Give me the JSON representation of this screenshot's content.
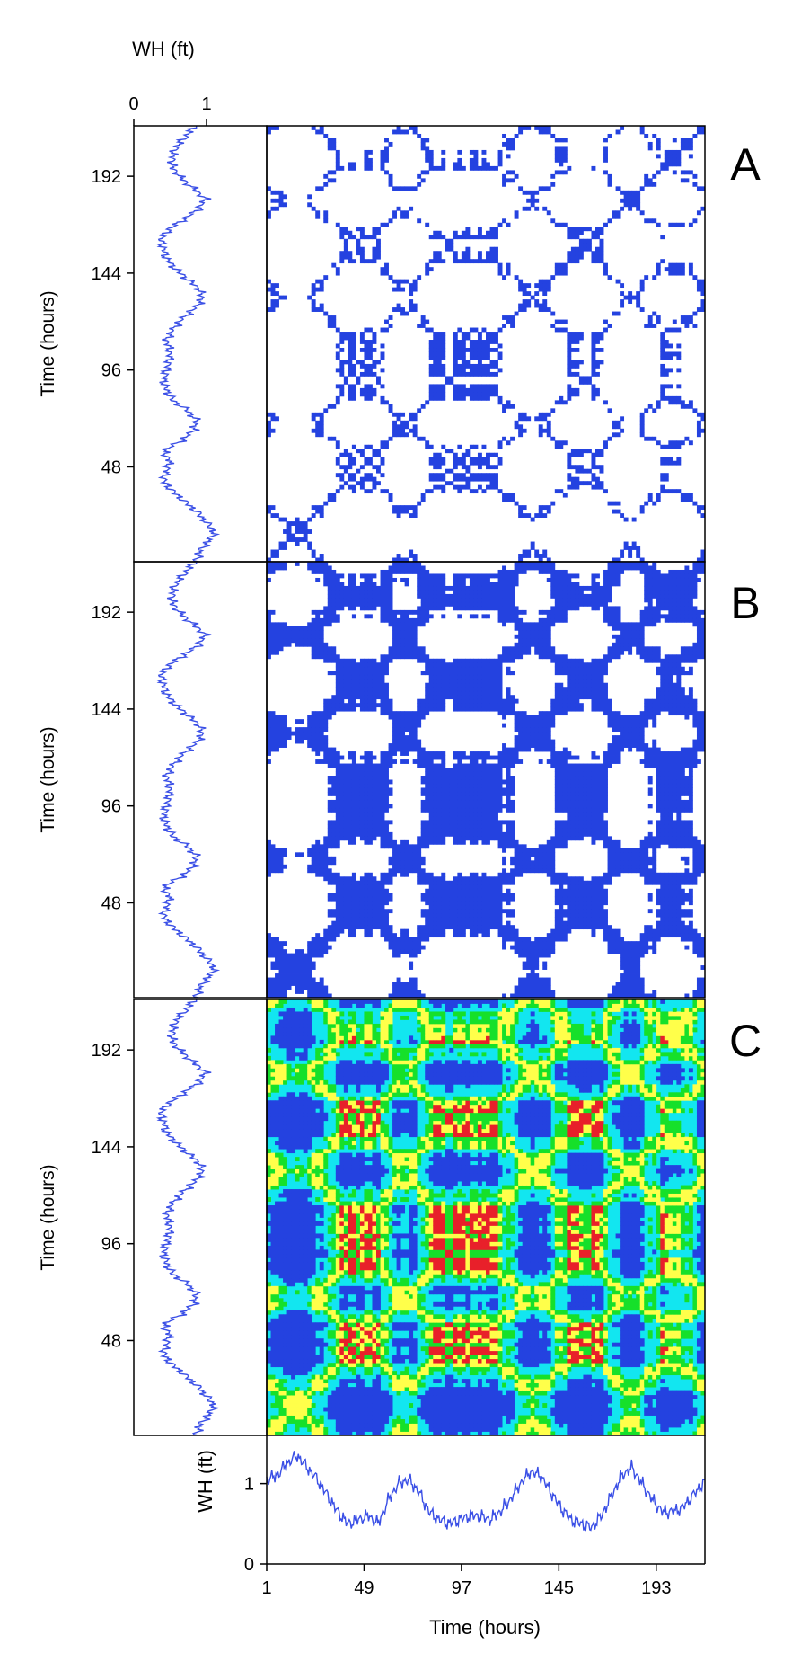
{
  "colors": {
    "wave_line": "#3a4fe6",
    "recurrence": "#2442e0",
    "level_cyan": "#12e6f0",
    "level_green": "#16e02a",
    "level_yellow": "#ffff4a",
    "level_red": "#e8202a",
    "frame": "#000000"
  },
  "chart_data": [
    {
      "type": "line",
      "panel_role": "top-axis wave height profile (vertical)",
      "xlabel": "WH (ft)",
      "xlim": [
        0,
        1
      ],
      "x_ticks": [
        "0",
        "1"
      ],
      "ylabel": "Time (hours)",
      "y_ticks": [
        "192",
        "144",
        "96",
        "48"
      ],
      "ylim": [
        1,
        217
      ],
      "note_values_from_bottom_trace": true
    },
    {
      "type": "heatmap",
      "panel_label": "A",
      "ylabel": "Time (hours)",
      "y_ticks": [
        "192",
        "144",
        "96",
        "48"
      ],
      "ylim": [
        1,
        217
      ],
      "threshold_fraction": 0.06,
      "colors": [
        "#2442e0"
      ]
    },
    {
      "type": "heatmap",
      "panel_label": "B",
      "ylabel": "Time (hours)",
      "y_ticks": [
        "192",
        "144",
        "96",
        "48"
      ],
      "ylim": [
        1,
        217
      ],
      "threshold_fraction": 0.22,
      "colors": [
        "#2442e0"
      ]
    },
    {
      "type": "heatmap",
      "panel_label": "C",
      "ylabel": "Time (hours)",
      "y_ticks": [
        "192",
        "144",
        "96",
        "48"
      ],
      "ylim": [
        1,
        217
      ],
      "levels": [
        "blue",
        "cyan",
        "green",
        "yellow",
        "red"
      ]
    },
    {
      "type": "line",
      "panel_role": "bottom wave height time series",
      "xlabel": "Time (hours)",
      "x_ticks": [
        "1",
        "49",
        "97",
        "145",
        "193"
      ],
      "xlim": [
        1,
        217
      ],
      "ylabel": "WH (ft)",
      "y_ticks": [
        "1",
        "0"
      ],
      "ylim": [
        0,
        1.6
      ],
      "x": [
        1,
        6,
        11,
        16,
        21,
        26,
        31,
        36,
        41,
        46,
        51,
        56,
        61,
        66,
        71,
        76,
        81,
        86,
        91,
        96,
        101,
        106,
        111,
        116,
        121,
        126,
        131,
        136,
        141,
        146,
        151,
        156,
        161,
        166,
        171,
        176,
        181,
        186,
        191,
        196,
        201,
        206,
        211,
        216
      ],
      "y": [
        1.05,
        1.1,
        1.25,
        1.35,
        1.2,
        1.05,
        0.85,
        0.65,
        0.5,
        0.55,
        0.6,
        0.5,
        0.8,
        1.0,
        1.05,
        0.9,
        0.65,
        0.55,
        0.5,
        0.55,
        0.6,
        0.6,
        0.55,
        0.65,
        0.8,
        1.0,
        1.15,
        1.1,
        0.9,
        0.7,
        0.55,
        0.5,
        0.45,
        0.6,
        0.85,
        1.1,
        1.2,
        1.0,
        0.8,
        0.65,
        0.65,
        0.7,
        0.85,
        1.0
      ]
    }
  ]
}
